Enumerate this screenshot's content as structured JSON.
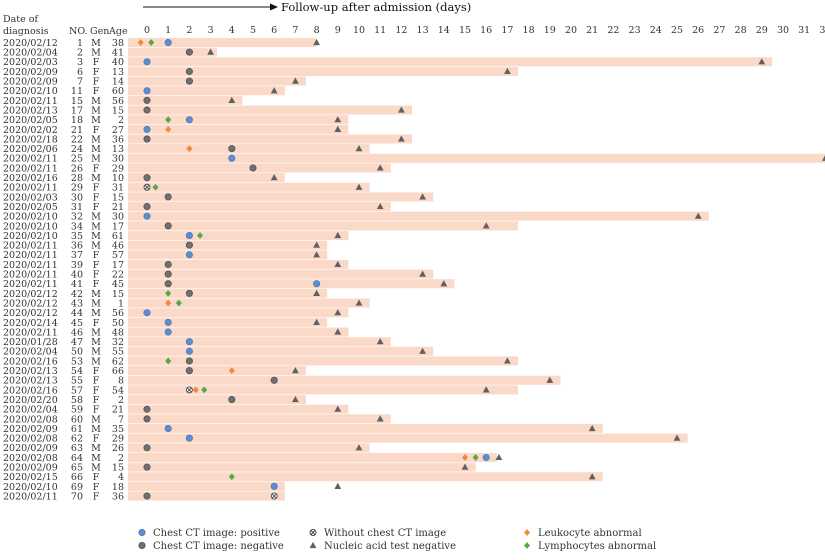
{
  "chart_data": {
    "type": "timeline",
    "title": "Follow-up after admission (days)",
    "x_ticks": [
      0,
      1,
      2,
      3,
      4,
      5,
      6,
      7,
      8,
      9,
      10,
      11,
      12,
      13,
      14,
      15,
      16,
      17,
      18,
      19,
      20,
      21,
      22,
      23,
      24,
      25,
      26,
      27,
      28,
      29,
      30,
      31,
      32
    ],
    "xlim": [
      0,
      32
    ],
    "columns": {
      "date": "Date of diagnosis",
      "no": "NO.",
      "gen": "Gen",
      "age": "Age"
    },
    "legend": [
      {
        "key": "ct_pos",
        "label": "Chest CT image: positive",
        "color": "#5b8fd0"
      },
      {
        "key": "ct_neg",
        "label": "Chest CT image: negative",
        "color": "#707070"
      },
      {
        "key": "no_ct",
        "label": "Without chest CT image",
        "color": "#555555"
      },
      {
        "key": "nat_neg",
        "label": "Nucleic acid test negative",
        "color": "#606060"
      },
      {
        "key": "leuko",
        "label": "Leukocyte abnormal",
        "color": "#f08a35"
      },
      {
        "key": "lympho",
        "label": "Lymphocytes abnormal",
        "color": "#55a844"
      }
    ],
    "bar_color": "#fad9c9",
    "patients": [
      {
        "date": "2020/02/12",
        "no": "1",
        "gen": "M",
        "age": "38",
        "end": 8,
        "events": [
          [
            "leuko",
            -0.3
          ],
          [
            "lympho",
            0.2
          ],
          [
            "ct_pos",
            1
          ],
          [
            "nat_neg",
            8
          ]
        ]
      },
      {
        "date": "2020/02/04",
        "no": "2",
        "gen": "M",
        "age": "41",
        "end": 3.3,
        "events": [
          [
            "ct_neg",
            2
          ],
          [
            "nat_neg",
            3
          ]
        ]
      },
      {
        "date": "2020/02/03",
        "no": "3",
        "gen": "F",
        "age": "40",
        "end": 29.5,
        "events": [
          [
            "ct_pos",
            0
          ],
          [
            "nat_neg",
            29
          ]
        ]
      },
      {
        "date": "2020/02/09",
        "no": "6",
        "gen": "F",
        "age": "13",
        "end": 17.5,
        "events": [
          [
            "ct_neg",
            2
          ],
          [
            "nat_neg",
            17
          ]
        ]
      },
      {
        "date": "2020/02/09",
        "no": "7",
        "gen": "F",
        "age": "14",
        "end": 7.5,
        "events": [
          [
            "ct_neg",
            2
          ],
          [
            "nat_neg",
            7
          ]
        ]
      },
      {
        "date": "2020/02/10",
        "no": "11",
        "gen": "F",
        "age": "60",
        "end": 6.5,
        "events": [
          [
            "ct_pos",
            0
          ],
          [
            "nat_neg",
            6
          ]
        ]
      },
      {
        "date": "2020/02/11",
        "no": "15",
        "gen": "M",
        "age": "56",
        "end": 4.5,
        "events": [
          [
            "ct_neg",
            0
          ],
          [
            "nat_neg",
            4
          ]
        ]
      },
      {
        "date": "2020/02/13",
        "no": "17",
        "gen": "M",
        "age": "15",
        "end": 12.5,
        "events": [
          [
            "ct_neg",
            0
          ],
          [
            "nat_neg",
            12
          ]
        ]
      },
      {
        "date": "2020/02/05",
        "no": "18",
        "gen": "M",
        "age": "2",
        "end": 9.5,
        "events": [
          [
            "lympho",
            1
          ],
          [
            "ct_pos",
            2
          ],
          [
            "nat_neg",
            9
          ]
        ]
      },
      {
        "date": "2020/02/02",
        "no": "21",
        "gen": "F",
        "age": "27",
        "end": 9.5,
        "events": [
          [
            "ct_pos",
            0
          ],
          [
            "leuko",
            1
          ],
          [
            "nat_neg",
            9
          ]
        ]
      },
      {
        "date": "2020/02/18",
        "no": "22",
        "gen": "M",
        "age": "36",
        "end": 12.5,
        "events": [
          [
            "ct_neg",
            0
          ],
          [
            "nat_neg",
            12
          ]
        ]
      },
      {
        "date": "2020/02/06",
        "no": "24",
        "gen": "M",
        "age": "13",
        "end": 10.5,
        "events": [
          [
            "leuko",
            2
          ],
          [
            "ct_neg",
            4
          ],
          [
            "nat_neg",
            10
          ]
        ]
      },
      {
        "date": "2020/02/11",
        "no": "25",
        "gen": "M",
        "age": "30",
        "end": 32.5,
        "events": [
          [
            "ct_pos",
            4
          ],
          [
            "nat_neg",
            32
          ]
        ]
      },
      {
        "date": "2020/02/11",
        "no": "26",
        "gen": "F",
        "age": "29",
        "end": 11.5,
        "events": [
          [
            "ct_neg",
            5
          ],
          [
            "nat_neg",
            11
          ]
        ]
      },
      {
        "date": "2020/02/16",
        "no": "28",
        "gen": "M",
        "age": "10",
        "end": 6.5,
        "events": [
          [
            "ct_neg",
            0
          ],
          [
            "nat_neg",
            6
          ]
        ]
      },
      {
        "date": "2020/02/11",
        "no": "29",
        "gen": "F",
        "age": "31",
        "end": 10.5,
        "events": [
          [
            "no_ct",
            0
          ],
          [
            "lympho",
            0.4
          ],
          [
            "nat_neg",
            10
          ]
        ]
      },
      {
        "date": "2020/02/03",
        "no": "30",
        "gen": "F",
        "age": "15",
        "end": 13.5,
        "events": [
          [
            "ct_neg",
            1
          ],
          [
            "nat_neg",
            13
          ]
        ]
      },
      {
        "date": "2020/02/05",
        "no": "31",
        "gen": "F",
        "age": "21",
        "end": 11.5,
        "events": [
          [
            "ct_neg",
            0
          ],
          [
            "nat_neg",
            11
          ]
        ]
      },
      {
        "date": "2020/02/10",
        "no": "32",
        "gen": "M",
        "age": "30",
        "end": 26.5,
        "events": [
          [
            "ct_pos",
            0
          ],
          [
            "nat_neg",
            26
          ]
        ]
      },
      {
        "date": "2020/02/10",
        "no": "34",
        "gen": "M",
        "age": "17",
        "end": 17.5,
        "events": [
          [
            "ct_neg",
            1
          ],
          [
            "nat_neg",
            16
          ]
        ]
      },
      {
        "date": "2020/02/10",
        "no": "35",
        "gen": "M",
        "age": "61",
        "end": 9.5,
        "events": [
          [
            "ct_pos",
            2
          ],
          [
            "lympho",
            2.5
          ],
          [
            "nat_neg",
            9
          ]
        ]
      },
      {
        "date": "2020/02/11",
        "no": "36",
        "gen": "M",
        "age": "46",
        "end": 8.5,
        "events": [
          [
            "ct_neg",
            2
          ],
          [
            "nat_neg",
            8
          ]
        ]
      },
      {
        "date": "2020/02/11",
        "no": "37",
        "gen": "F",
        "age": "57",
        "end": 8.5,
        "events": [
          [
            "ct_pos",
            2
          ],
          [
            "nat_neg",
            8
          ]
        ]
      },
      {
        "date": "2020/02/11",
        "no": "39",
        "gen": "F",
        "age": "17",
        "end": 9.5,
        "events": [
          [
            "ct_neg",
            1
          ],
          [
            "nat_neg",
            9
          ]
        ]
      },
      {
        "date": "2020/02/11",
        "no": "40",
        "gen": "F",
        "age": "22",
        "end": 13.5,
        "events": [
          [
            "ct_neg",
            1
          ],
          [
            "nat_neg",
            13
          ]
        ]
      },
      {
        "date": "2020/02/11",
        "no": "41",
        "gen": "F",
        "age": "45",
        "end": 14.5,
        "events": [
          [
            "ct_neg",
            1
          ],
          [
            "ct_pos",
            8
          ],
          [
            "nat_neg",
            14
          ]
        ]
      },
      {
        "date": "2020/02/12",
        "no": "42",
        "gen": "M",
        "age": "15",
        "end": 8.5,
        "events": [
          [
            "lympho",
            1
          ],
          [
            "ct_neg",
            2
          ],
          [
            "nat_neg",
            8
          ]
        ]
      },
      {
        "date": "2020/02/12",
        "no": "43",
        "gen": "M",
        "age": "1",
        "end": 10.5,
        "events": [
          [
            "leuko",
            1
          ],
          [
            "lympho",
            1.5
          ],
          [
            "nat_neg",
            10
          ]
        ]
      },
      {
        "date": "2020/02/12",
        "no": "44",
        "gen": "M",
        "age": "56",
        "end": 9.5,
        "events": [
          [
            "ct_pos",
            0
          ],
          [
            "nat_neg",
            9
          ]
        ]
      },
      {
        "date": "2020/02/14",
        "no": "45",
        "gen": "F",
        "age": "50",
        "end": 8.5,
        "events": [
          [
            "ct_pos",
            1
          ],
          [
            "nat_neg",
            8
          ]
        ]
      },
      {
        "date": "2020/02/11",
        "no": "46",
        "gen": "M",
        "age": "48",
        "end": 9.5,
        "events": [
          [
            "ct_pos",
            1
          ],
          [
            "nat_neg",
            9
          ]
        ]
      },
      {
        "date": "2020/01/28",
        "no": "47",
        "gen": "M",
        "age": "32",
        "end": 11.5,
        "events": [
          [
            "ct_pos",
            2
          ],
          [
            "nat_neg",
            11
          ]
        ]
      },
      {
        "date": "2020/02/04",
        "no": "50",
        "gen": "M",
        "age": "55",
        "end": 13.5,
        "events": [
          [
            "ct_pos",
            2
          ],
          [
            "nat_neg",
            13
          ]
        ]
      },
      {
        "date": "2020/02/16",
        "no": "53",
        "gen": "M",
        "age": "62",
        "end": 17.5,
        "events": [
          [
            "lympho",
            1
          ],
          [
            "ct_neg",
            2
          ],
          [
            "nat_neg",
            17
          ]
        ]
      },
      {
        "date": "2020/02/13",
        "no": "54",
        "gen": "F",
        "age": "66",
        "end": 7.5,
        "events": [
          [
            "ct_neg",
            2
          ],
          [
            "leuko",
            4
          ],
          [
            "nat_neg",
            7
          ]
        ]
      },
      {
        "date": "2020/02/13",
        "no": "55",
        "gen": "F",
        "age": "8",
        "end": 19.5,
        "events": [
          [
            "ct_neg",
            6
          ],
          [
            "nat_neg",
            19
          ]
        ]
      },
      {
        "date": "2020/02/16",
        "no": "57",
        "gen": "F",
        "age": "54",
        "end": 17.5,
        "events": [
          [
            "no_ct",
            2
          ],
          [
            "leuko",
            2.3
          ],
          [
            "lympho",
            2.7
          ],
          [
            "nat_neg",
            16
          ]
        ]
      },
      {
        "date": "2020/02/20",
        "no": "58",
        "gen": "F",
        "age": "2",
        "end": 7.5,
        "events": [
          [
            "ct_neg",
            4
          ],
          [
            "nat_neg",
            7
          ]
        ]
      },
      {
        "date": "2020/02/04",
        "no": "59",
        "gen": "F",
        "age": "21",
        "end": 9.5,
        "events": [
          [
            "ct_neg",
            0
          ],
          [
            "nat_neg",
            9
          ]
        ]
      },
      {
        "date": "2020/02/08",
        "no": "60",
        "gen": "M",
        "age": "7",
        "end": 11.5,
        "events": [
          [
            "ct_neg",
            0
          ],
          [
            "nat_neg",
            11
          ]
        ]
      },
      {
        "date": "2020/02/09",
        "no": "61",
        "gen": "M",
        "age": "35",
        "end": 21.5,
        "events": [
          [
            "ct_pos",
            1
          ],
          [
            "nat_neg",
            21
          ]
        ]
      },
      {
        "date": "2020/02/08",
        "no": "62",
        "gen": "F",
        "age": "29",
        "end": 25.5,
        "events": [
          [
            "ct_pos",
            2
          ],
          [
            "nat_neg",
            25
          ]
        ]
      },
      {
        "date": "2020/02/09",
        "no": "63",
        "gen": "M",
        "age": "26",
        "end": 10.5,
        "events": [
          [
            "ct_neg",
            0
          ],
          [
            "nat_neg",
            10
          ]
        ]
      },
      {
        "date": "2020/02/08",
        "no": "64",
        "gen": "M",
        "age": "2",
        "end": 16.5,
        "events": [
          [
            "leuko",
            15
          ],
          [
            "lympho",
            15.5
          ],
          [
            "ct_pos",
            16
          ],
          [
            "nat_neg",
            16.6
          ]
        ]
      },
      {
        "date": "2020/02/09",
        "no": "65",
        "gen": "M",
        "age": "15",
        "end": 15.5,
        "events": [
          [
            "ct_neg",
            0
          ],
          [
            "nat_neg",
            15
          ]
        ]
      },
      {
        "date": "2020/02/15",
        "no": "66",
        "gen": "F",
        "age": "4",
        "end": 21.5,
        "events": [
          [
            "lympho",
            4
          ],
          [
            "nat_neg",
            21
          ]
        ]
      },
      {
        "date": "2020/02/10",
        "no": "69",
        "gen": "F",
        "age": "18",
        "end": 6.5,
        "events": [
          [
            "ct_pos",
            6
          ],
          [
            "nat_neg",
            9
          ]
        ]
      },
      {
        "date": "2020/02/11",
        "no": "70",
        "gen": "F",
        "age": "36",
        "end": 6.5,
        "events": [
          [
            "ct_neg",
            0
          ],
          [
            "no_ct",
            6
          ]
        ]
      }
    ]
  }
}
